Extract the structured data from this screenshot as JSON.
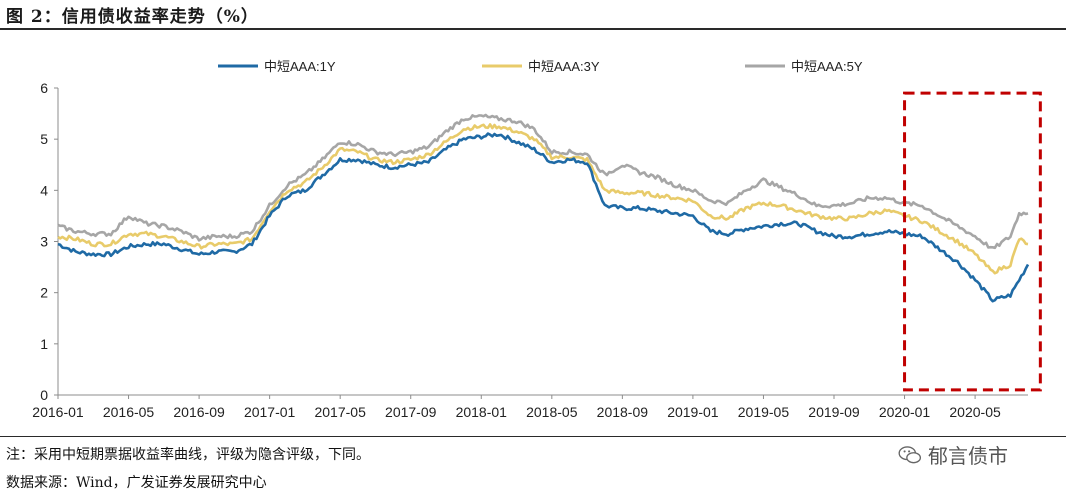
{
  "header": {
    "title": "图 2：信用债收益率走势（%）"
  },
  "footer": {
    "note": "注：采用中短期票据收益率曲线，评级为隐含评级，下同。",
    "source": "数据来源：Wind，广发证券发展研究中心",
    "watermark": "郁言债市"
  },
  "colors": {
    "series_1y": "#1F6AA5",
    "series_3y": "#E8CB6A",
    "series_5y": "#A6A6A6",
    "highlight_box": "#C00000"
  },
  "chart_data": {
    "type": "line",
    "title": "信用债收益率走势（%）",
    "xlabel": "",
    "ylabel": "",
    "ylim": [
      0,
      6
    ],
    "yticks": [
      "0",
      "1",
      "2",
      "3",
      "4",
      "5",
      "6"
    ],
    "xticks": [
      "2016-01",
      "2016-05",
      "2016-09",
      "2017-01",
      "2017-05",
      "2017-09",
      "2018-01",
      "2018-05",
      "2018-09",
      "2019-01",
      "2019-05",
      "2019-09",
      "2020-01",
      "2020-05"
    ],
    "xrange_months": [
      0,
      55
    ],
    "legend_position": "top",
    "highlight_region": {
      "from_month": 48,
      "to_month": 55.7,
      "ymin": 0.1,
      "ymax": 5.9,
      "style": "dashed"
    },
    "x": [
      0,
      1,
      2,
      3,
      4,
      5,
      6,
      7,
      8,
      9,
      10,
      11,
      12,
      13,
      14,
      15,
      16,
      17,
      18,
      19,
      20,
      21,
      22,
      23,
      24,
      25,
      26,
      27,
      28,
      29,
      30,
      31,
      32,
      33,
      34,
      35,
      36,
      37,
      38,
      39,
      40,
      41,
      42,
      43,
      44,
      45,
      46,
      47,
      48,
      49,
      50,
      51,
      52,
      53,
      54,
      54.5,
      55
    ],
    "series": [
      {
        "name": "中短AAA:1Y",
        "values": [
          2.95,
          2.8,
          2.75,
          2.75,
          2.9,
          2.95,
          2.95,
          2.85,
          2.75,
          2.8,
          2.8,
          2.95,
          3.5,
          3.9,
          4.0,
          4.3,
          4.6,
          4.6,
          4.5,
          4.45,
          4.5,
          4.55,
          4.8,
          5.0,
          5.05,
          5.1,
          4.95,
          4.8,
          4.55,
          4.6,
          4.55,
          3.7,
          3.65,
          3.65,
          3.6,
          3.55,
          3.5,
          3.2,
          3.15,
          3.25,
          3.3,
          3.35,
          3.35,
          3.2,
          3.1,
          3.1,
          3.15,
          3.2,
          3.15,
          3.1,
          2.85,
          2.6,
          2.25,
          1.85,
          1.95,
          2.25,
          2.55
        ]
      },
      {
        "name": "中短AAA:3Y",
        "values": [
          3.1,
          3.05,
          2.95,
          2.95,
          3.15,
          3.15,
          3.1,
          3.0,
          2.9,
          2.95,
          2.95,
          3.05,
          3.6,
          4.0,
          4.15,
          4.45,
          4.8,
          4.75,
          4.6,
          4.55,
          4.6,
          4.7,
          4.95,
          5.2,
          5.25,
          5.25,
          5.15,
          5.0,
          4.65,
          4.65,
          4.6,
          4.0,
          3.95,
          3.95,
          3.9,
          3.85,
          3.8,
          3.5,
          3.45,
          3.65,
          3.75,
          3.7,
          3.6,
          3.5,
          3.45,
          3.45,
          3.55,
          3.6,
          3.5,
          3.4,
          3.2,
          3.0,
          2.75,
          2.4,
          2.55,
          3.05,
          2.95
        ]
      },
      {
        "name": "中短AAA:5Y",
        "values": [
          3.3,
          3.2,
          3.15,
          3.15,
          3.5,
          3.35,
          3.3,
          3.2,
          3.05,
          3.1,
          3.1,
          3.2,
          3.7,
          4.1,
          4.3,
          4.6,
          4.95,
          4.9,
          4.75,
          4.7,
          4.75,
          4.85,
          5.15,
          5.4,
          5.45,
          5.4,
          5.35,
          5.2,
          4.75,
          4.75,
          4.7,
          4.3,
          4.5,
          4.35,
          4.25,
          4.1,
          4.0,
          3.8,
          3.75,
          4.0,
          4.2,
          4.05,
          3.9,
          3.7,
          3.7,
          3.75,
          3.85,
          3.85,
          3.75,
          3.7,
          3.5,
          3.3,
          3.1,
          2.85,
          3.1,
          3.55,
          3.55
        ]
      }
    ]
  }
}
